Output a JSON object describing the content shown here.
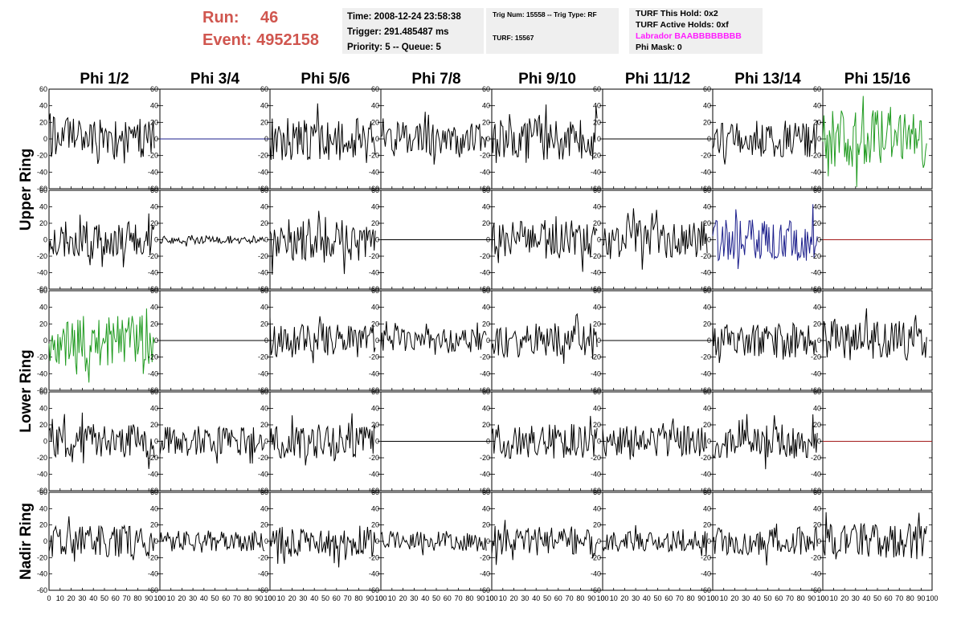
{
  "header": {
    "run_label": "Run:",
    "run_value": "46",
    "event_label": "Event:",
    "event_value": "4952158"
  },
  "info": {
    "time": "Time: 2008-12-24 23:58:38",
    "trigger": "Trigger: 291.485487 ms",
    "priority": "Priority: 5 -- Queue: 5",
    "trig_num": "Trig Num: 15558 -- Trig Type: RF",
    "turf": "TURF: 15567",
    "turf_this_hold": "TURF This Hold: 0x2",
    "turf_active_holds": "TURF Active Holds: 0xf",
    "labrador": "Labrador BAABBBBBBBB",
    "phi_mask": "Phi Mask: 0"
  },
  "chart_data": {
    "type": "line",
    "columns": [
      "Phi 1/2",
      "Phi 3/4",
      "Phi 5/6",
      "Phi 7/8",
      "Phi 9/10",
      "Phi 11/12",
      "Phi 13/14",
      "Phi 15/16"
    ],
    "ring_labels": [
      "Upper Ring",
      "Lower Ring",
      "Nadir Ring"
    ],
    "xlim": [
      0,
      100
    ],
    "ylim": [
      -60,
      60
    ],
    "x_ticks": [
      0,
      10,
      20,
      30,
      40,
      50,
      60,
      70,
      80,
      90,
      100
    ],
    "y_ticks": [
      -60,
      -40,
      -20,
      0,
      20,
      40,
      60
    ],
    "colors": {
      "black": "#000000",
      "green": "#1f9a1f",
      "blue": "#1c1f8c",
      "red": "#a31a1a"
    },
    "cells": [
      [
        {
          "amp": 16,
          "color": "black",
          "seed": 11
        },
        {
          "amp": 0,
          "color": "blue",
          "seed": 12
        },
        {
          "amp": 16,
          "color": "black",
          "seed": 13
        },
        {
          "amp": 13,
          "color": "black",
          "seed": 14
        },
        {
          "amp": 16,
          "color": "black",
          "seed": 15
        },
        {
          "amp": 0,
          "color": "black",
          "seed": 16
        },
        {
          "amp": 14,
          "color": "black",
          "seed": 17
        },
        {
          "amp": 22,
          "color": "green",
          "seed": 18
        }
      ],
      [
        {
          "amp": 15,
          "color": "black",
          "seed": 21
        },
        {
          "amp": 3,
          "color": "black",
          "seed": 22
        },
        {
          "amp": 16,
          "color": "black",
          "seed": 23
        },
        {
          "amp": 0,
          "color": "black",
          "seed": 24
        },
        {
          "amp": 15,
          "color": "black",
          "seed": 25
        },
        {
          "amp": 15,
          "color": "black",
          "seed": 26
        },
        {
          "amp": 16,
          "color": "blue",
          "seed": 27
        },
        {
          "amp": 0,
          "color": "red",
          "seed": 28
        }
      ],
      [
        {
          "amp": 19,
          "color": "green",
          "seed": 31
        },
        {
          "amp": 0,
          "color": "black",
          "seed": 32
        },
        {
          "amp": 13,
          "color": "black",
          "seed": 33
        },
        {
          "amp": 9,
          "color": "black",
          "seed": 34
        },
        {
          "amp": 13,
          "color": "black",
          "seed": 35
        },
        {
          "amp": 0,
          "color": "black",
          "seed": 36
        },
        {
          "amp": 13,
          "color": "black",
          "seed": 37
        },
        {
          "amp": 15,
          "color": "black",
          "seed": 38
        }
      ],
      [
        {
          "amp": 13,
          "color": "black",
          "seed": 41
        },
        {
          "amp": 11,
          "color": "black",
          "seed": 42
        },
        {
          "amp": 13,
          "color": "black",
          "seed": 43
        },
        {
          "amp": 0,
          "color": "black",
          "seed": 44
        },
        {
          "amp": 13,
          "color": "black",
          "seed": 45
        },
        {
          "amp": 12,
          "color": "black",
          "seed": 46
        },
        {
          "amp": 13,
          "color": "black",
          "seed": 47
        },
        {
          "amp": 0,
          "color": "red",
          "seed": 48
        }
      ],
      [
        {
          "amp": 12,
          "color": "black",
          "seed": 51
        },
        {
          "amp": 8,
          "color": "black",
          "seed": 52
        },
        {
          "amp": 12,
          "color": "black",
          "seed": 53
        },
        {
          "amp": 8,
          "color": "black",
          "seed": 54
        },
        {
          "amp": 11,
          "color": "black",
          "seed": 55
        },
        {
          "amp": 8,
          "color": "black",
          "seed": 56
        },
        {
          "amp": 11,
          "color": "black",
          "seed": 57
        },
        {
          "amp": 14,
          "color": "black",
          "seed": 58
        }
      ]
    ]
  }
}
